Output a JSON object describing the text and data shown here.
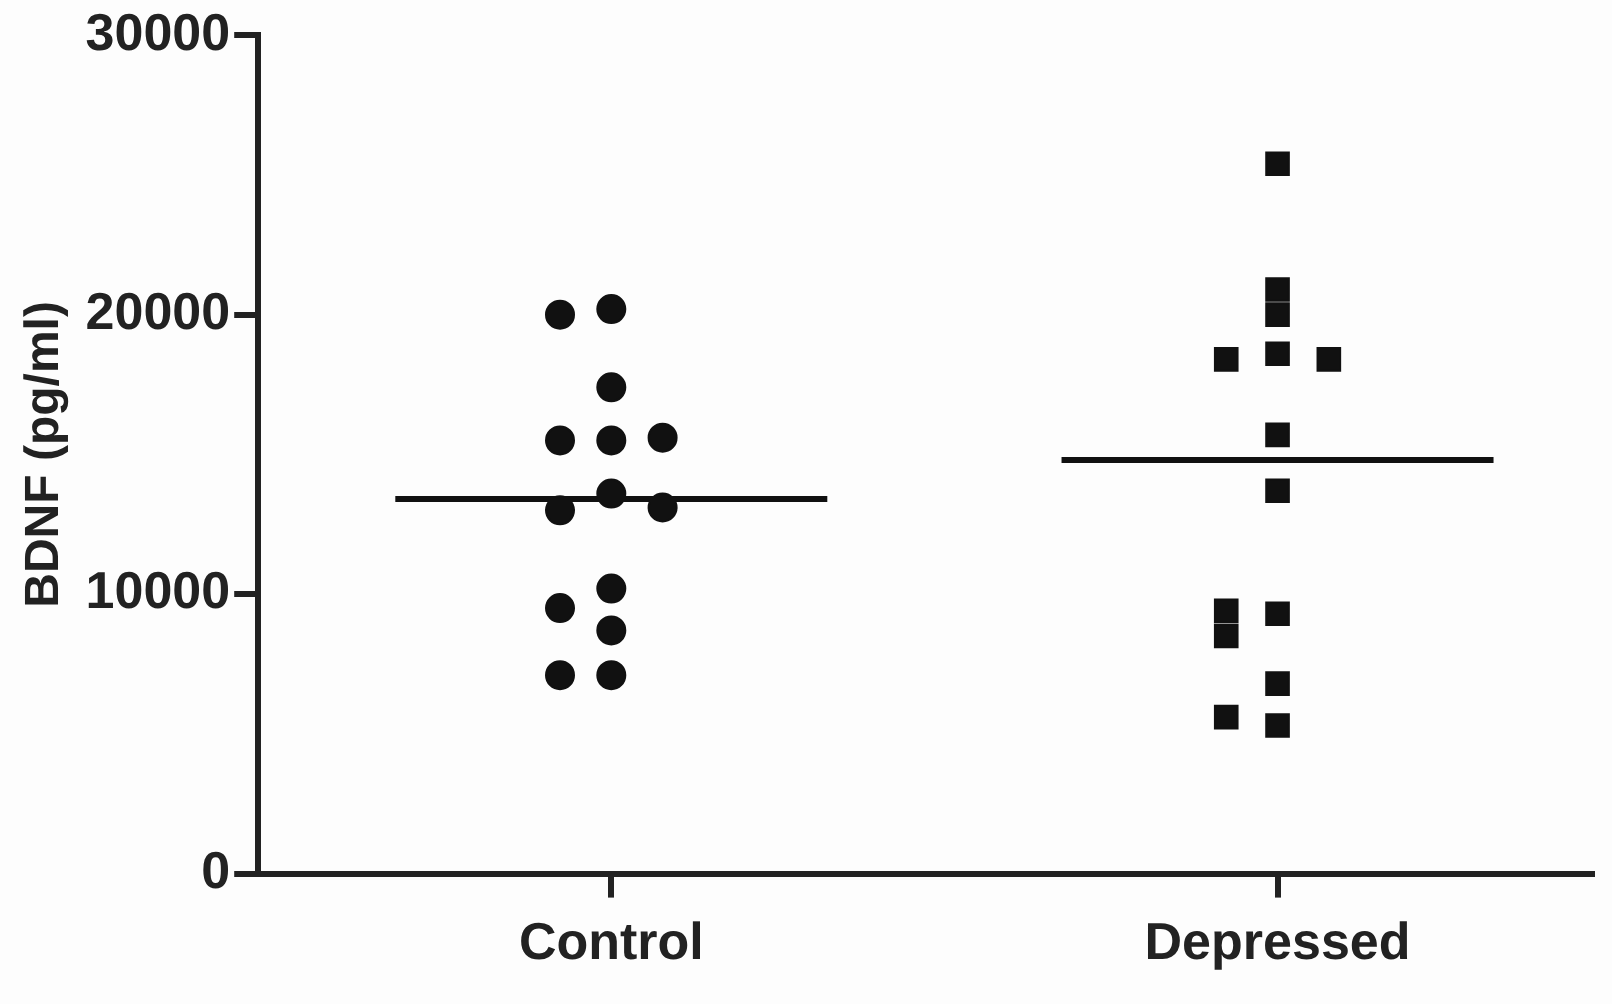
{
  "chart_data": {
    "type": "scatter",
    "ylabel": "BDNF (pg/ml)",
    "categories": [
      "Control",
      "Depressed"
    ],
    "ylim": [
      0,
      30000
    ],
    "yticks": [
      0,
      10000,
      20000,
      30000
    ],
    "grid": false,
    "legend": false,
    "series": [
      {
        "marker": "circle",
        "color": "#111111",
        "x": [
          "Control",
          "Control",
          "Control",
          "Control",
          "Control",
          "Control",
          "Control",
          "Control",
          "Control",
          "Control",
          "Control",
          "Control",
          "Control",
          "Control"
        ],
        "values": [
          20200,
          20000,
          17400,
          15500,
          15500,
          15600,
          13600,
          13000,
          13100,
          10200,
          9500,
          8700,
          7100,
          7100
        ]
      },
      {
        "marker": "square",
        "color": "#111111",
        "x": [
          "Depressed",
          "Depressed",
          "Depressed",
          "Depressed",
          "Depressed",
          "Depressed",
          "Depressed",
          "Depressed",
          "Depressed",
          "Depressed",
          "Depressed",
          "Depressed",
          "Depressed",
          "Depressed"
        ],
        "values": [
          25400,
          20900,
          20000,
          18600,
          18400,
          18400,
          15700,
          13700,
          9300,
          8500,
          9400,
          6800,
          5300,
          5600
        ]
      }
    ],
    "ref_lines": [
      {
        "axis": "y",
        "value": 13400,
        "color": "#111111"
      },
      {
        "axis": "y",
        "value": 14800,
        "color": "#111111"
      }
    ]
  }
}
